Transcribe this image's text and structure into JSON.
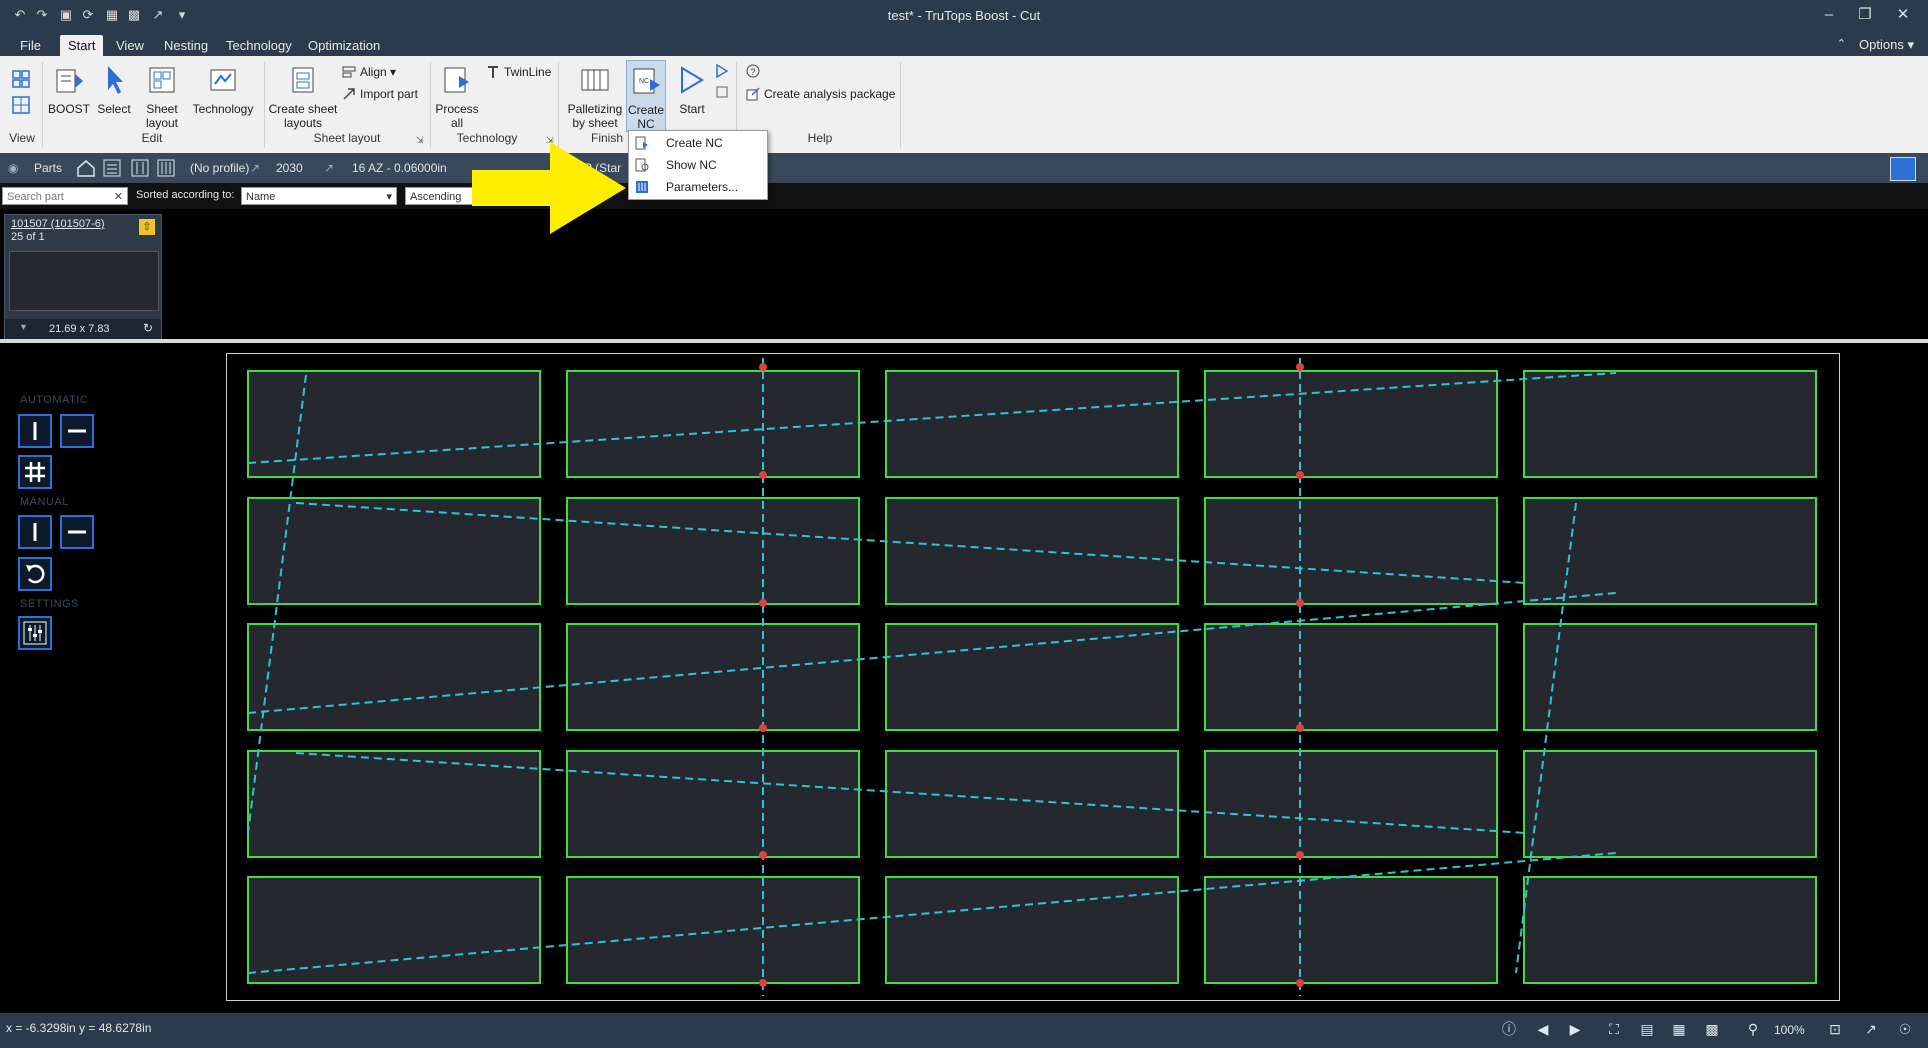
{
  "window": {
    "title": "test* - TruTops Boost - Cut"
  },
  "menu": {
    "tabs": [
      "File",
      "Start",
      "View",
      "Nesting",
      "Technology",
      "Optimization"
    ],
    "active": "Start",
    "options_label": "Options"
  },
  "ribbon": {
    "groups": {
      "view": "View",
      "edit": "Edit",
      "sheet_layout": "Sheet layout",
      "technology": "Technology",
      "finish": "Finish",
      "help": "Help"
    },
    "buttons": {
      "boost": "BOOST",
      "select": "Select",
      "sheet_layout_1": "Sheet",
      "sheet_layout_2": "layout",
      "technology": "Technology",
      "create_sheet_layouts_1": "Create sheet",
      "create_sheet_layouts_2": "layouts",
      "align": "Align",
      "import_part": "Import part",
      "process_all_1": "Process",
      "process_all_2": "all",
      "twinline": "TwinLine",
      "palletizing_1": "Palletizing",
      "palletizing_2": "by sheet",
      "create_nc_1": "Create",
      "create_nc_2": "NC",
      "start": "Start",
      "create_analysis_package": "Create analysis package"
    }
  },
  "dropdown": {
    "items": [
      "Create NC",
      "Show NC",
      "Parameters..."
    ]
  },
  "parts_toolbar": {
    "label": "Parts",
    "profile": "(No profile)",
    "machine": "2030",
    "material": "16 AZ - 0.06000in",
    "partial": "P (Star"
  },
  "sort_bar": {
    "search_placeholder": "Search part",
    "sorted_label": "Sorted according to:",
    "sort_field": "Name",
    "sort_order": "Ascending"
  },
  "part_card": {
    "name": "101507 (101507-6)",
    "count": "25 of 1",
    "dims": "21.69 x 7.83"
  },
  "left_panel": {
    "automatic": "AUTOMATIC",
    "manual": "MANUAL",
    "settings": "SETTINGS"
  },
  "status": {
    "coords": "x =  -6.3298in  y =  48.6278in",
    "zoom": "100%"
  },
  "colors": {
    "part_outline": "#3fdc3a",
    "accent_blue": "#2e6fd6",
    "highlight_arrow": "#ffee00",
    "toolpath": "#2ec4d6"
  }
}
